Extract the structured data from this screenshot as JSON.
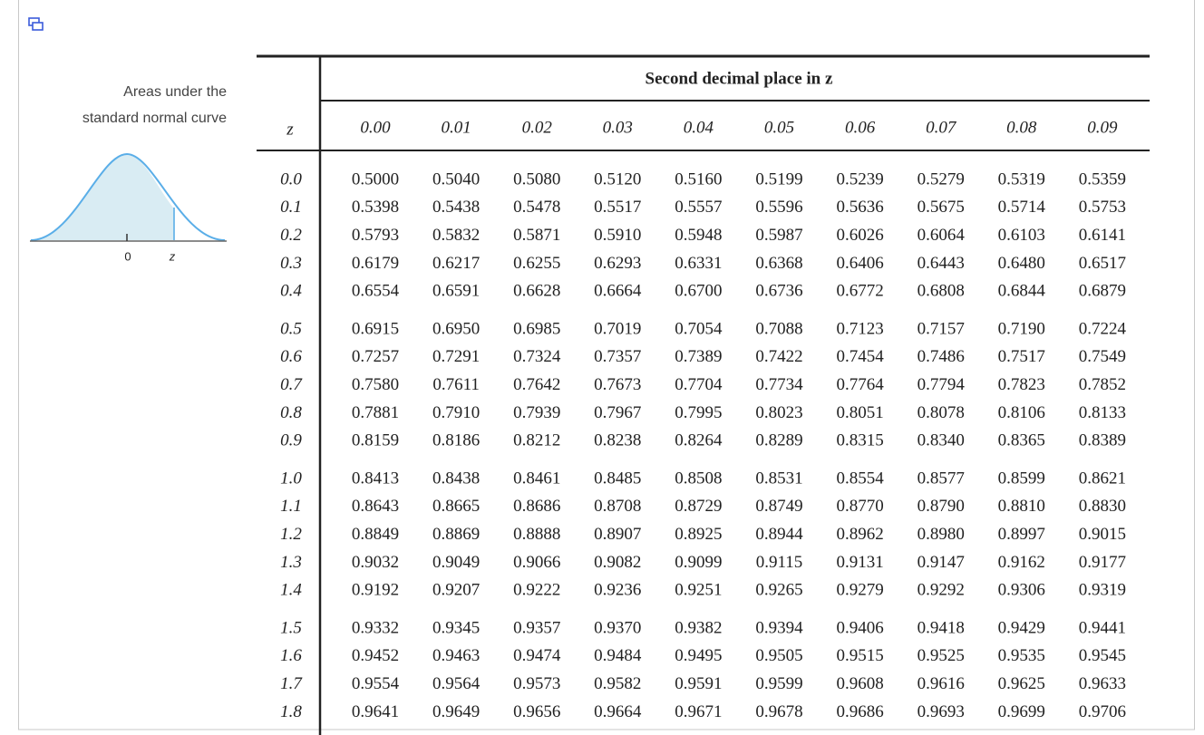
{
  "caption": {
    "lines": [
      "Areas under the",
      "standard normal curve"
    ],
    "origin_label": "0",
    "z_label": "z"
  },
  "table": {
    "title": "Second decimal place in z",
    "z_header": "z",
    "columns": [
      "0.00",
      "0.01",
      "0.02",
      "0.03",
      "0.04",
      "0.05",
      "0.06",
      "0.07",
      "0.08",
      "0.09"
    ],
    "rows": [
      {
        "z": "0.0",
        "values": [
          "0.5000",
          "0.5040",
          "0.5080",
          "0.5120",
          "0.5160",
          "0.5199",
          "0.5239",
          "0.5279",
          "0.5319",
          "0.5359"
        ]
      },
      {
        "z": "0.1",
        "values": [
          "0.5398",
          "0.5438",
          "0.5478",
          "0.5517",
          "0.5557",
          "0.5596",
          "0.5636",
          "0.5675",
          "0.5714",
          "0.5753"
        ]
      },
      {
        "z": "0.2",
        "values": [
          "0.5793",
          "0.5832",
          "0.5871",
          "0.5910",
          "0.5948",
          "0.5987",
          "0.6026",
          "0.6064",
          "0.6103",
          "0.6141"
        ]
      },
      {
        "z": "0.3",
        "values": [
          "0.6179",
          "0.6217",
          "0.6255",
          "0.6293",
          "0.6331",
          "0.6368",
          "0.6406",
          "0.6443",
          "0.6480",
          "0.6517"
        ]
      },
      {
        "z": "0.4",
        "values": [
          "0.6554",
          "0.6591",
          "0.6628",
          "0.6664",
          "0.6700",
          "0.6736",
          "0.6772",
          "0.6808",
          "0.6844",
          "0.6879"
        ]
      },
      {
        "z": "0.5",
        "values": [
          "0.6915",
          "0.6950",
          "0.6985",
          "0.7019",
          "0.7054",
          "0.7088",
          "0.7123",
          "0.7157",
          "0.7190",
          "0.7224"
        ]
      },
      {
        "z": "0.6",
        "values": [
          "0.7257",
          "0.7291",
          "0.7324",
          "0.7357",
          "0.7389",
          "0.7422",
          "0.7454",
          "0.7486",
          "0.7517",
          "0.7549"
        ]
      },
      {
        "z": "0.7",
        "values": [
          "0.7580",
          "0.7611",
          "0.7642",
          "0.7673",
          "0.7704",
          "0.7734",
          "0.7764",
          "0.7794",
          "0.7823",
          "0.7852"
        ]
      },
      {
        "z": "0.8",
        "values": [
          "0.7881",
          "0.7910",
          "0.7939",
          "0.7967",
          "0.7995",
          "0.8023",
          "0.8051",
          "0.8078",
          "0.8106",
          "0.8133"
        ]
      },
      {
        "z": "0.9",
        "values": [
          "0.8159",
          "0.8186",
          "0.8212",
          "0.8238",
          "0.8264",
          "0.8289",
          "0.8315",
          "0.8340",
          "0.8365",
          "0.8389"
        ]
      },
      {
        "z": "1.0",
        "values": [
          "0.8413",
          "0.8438",
          "0.8461",
          "0.8485",
          "0.8508",
          "0.8531",
          "0.8554",
          "0.8577",
          "0.8599",
          "0.8621"
        ]
      },
      {
        "z": "1.1",
        "values": [
          "0.8643",
          "0.8665",
          "0.8686",
          "0.8708",
          "0.8729",
          "0.8749",
          "0.8770",
          "0.8790",
          "0.8810",
          "0.8830"
        ]
      },
      {
        "z": "1.2",
        "values": [
          "0.8849",
          "0.8869",
          "0.8888",
          "0.8907",
          "0.8925",
          "0.8944",
          "0.8962",
          "0.8980",
          "0.8997",
          "0.9015"
        ]
      },
      {
        "z": "1.3",
        "values": [
          "0.9032",
          "0.9049",
          "0.9066",
          "0.9082",
          "0.9099",
          "0.9115",
          "0.9131",
          "0.9147",
          "0.9162",
          "0.9177"
        ]
      },
      {
        "z": "1.4",
        "values": [
          "0.9192",
          "0.9207",
          "0.9222",
          "0.9236",
          "0.9251",
          "0.9265",
          "0.9279",
          "0.9292",
          "0.9306",
          "0.9319"
        ]
      },
      {
        "z": "1.5",
        "values": [
          "0.9332",
          "0.9345",
          "0.9357",
          "0.9370",
          "0.9382",
          "0.9394",
          "0.9406",
          "0.9418",
          "0.9429",
          "0.9441"
        ]
      },
      {
        "z": "1.6",
        "values": [
          "0.9452",
          "0.9463",
          "0.9474",
          "0.9484",
          "0.9495",
          "0.9505",
          "0.9515",
          "0.9525",
          "0.9535",
          "0.9545"
        ]
      },
      {
        "z": "1.7",
        "values": [
          "0.9554",
          "0.9564",
          "0.9573",
          "0.9582",
          "0.9591",
          "0.9599",
          "0.9608",
          "0.9616",
          "0.9625",
          "0.9633"
        ]
      },
      {
        "z": "1.8",
        "values": [
          "0.9641",
          "0.9649",
          "0.9656",
          "0.9664",
          "0.9671",
          "0.9678",
          "0.9686",
          "0.9693",
          "0.9699",
          "0.9706"
        ]
      }
    ]
  }
}
